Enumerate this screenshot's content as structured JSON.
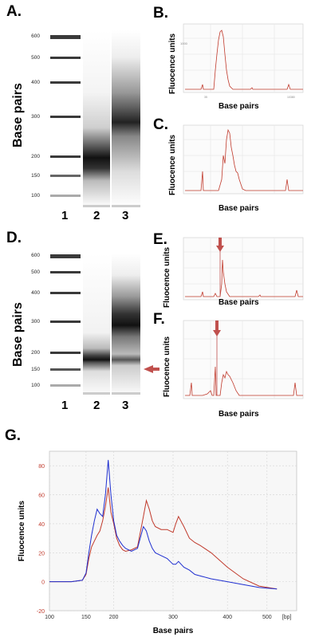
{
  "panels": {
    "A": "A.",
    "B": "B.",
    "C": "C.",
    "D": "D.",
    "E": "E.",
    "F": "F.",
    "G": "G."
  },
  "gel_axis_title": "Base pairs",
  "gel_ticks": [
    "600",
    "500",
    "400",
    "300",
    "200",
    "150",
    "100"
  ],
  "gel_ticks_d": [
    "600",
    "500",
    "400",
    "300",
    "200",
    "150",
    "100"
  ],
  "lanes": [
    "1",
    "2",
    "3"
  ],
  "small_ylabel": "Fluocence units",
  "small_xlabel": "Base pairs",
  "colors": {
    "red": "#c0392b",
    "blue": "#1f2fd0",
    "arrow": "#c0504d"
  },
  "chart_data": [
    {
      "type": "line",
      "panel": "G",
      "xlabel": "Base pairs",
      "ylabel": "Fluocence units",
      "x_ticks": [
        "100",
        "150",
        "200",
        "300",
        "400",
        "500",
        "[bp]"
      ],
      "y_ticks": [
        -20,
        0,
        20,
        40,
        60,
        80
      ],
      "ylim": [
        -20,
        90
      ],
      "series": [
        {
          "color": "#c0392b",
          "x": [
            100,
            130,
            145,
            150,
            155,
            160,
            165,
            170,
            175,
            180,
            185,
            190,
            195,
            200,
            205,
            210,
            215,
            220,
            230,
            240,
            250,
            255,
            260,
            265,
            270,
            280,
            290,
            300,
            305,
            310,
            320,
            330,
            340,
            350,
            370,
            400,
            440,
            480,
            520
          ],
          "y": [
            0,
            0,
            1,
            5,
            16,
            24,
            28,
            32,
            35,
            42,
            52,
            65,
            48,
            40,
            30,
            25,
            22,
            21,
            22,
            24,
            45,
            56,
            50,
            42,
            38,
            36,
            36,
            34,
            40,
            45,
            38,
            30,
            27,
            25,
            20,
            10,
            2,
            -3,
            -5
          ]
        },
        {
          "color": "#1f2fd0",
          "x": [
            100,
            130,
            145,
            150,
            155,
            160,
            165,
            170,
            175,
            180,
            185,
            190,
            195,
            200,
            205,
            210,
            215,
            220,
            230,
            240,
            250,
            255,
            260,
            265,
            270,
            280,
            290,
            300,
            305,
            310,
            320,
            330,
            340,
            350,
            370,
            400,
            440,
            480,
            520
          ],
          "y": [
            0,
            0,
            1,
            6,
            20,
            32,
            42,
            50,
            47,
            45,
            60,
            84,
            60,
            42,
            32,
            28,
            25,
            23,
            21,
            23,
            38,
            35,
            28,
            23,
            20,
            18,
            16,
            12,
            12,
            14,
            10,
            8,
            5,
            4,
            2,
            0,
            -2,
            -4,
            -5
          ]
        }
      ]
    }
  ]
}
